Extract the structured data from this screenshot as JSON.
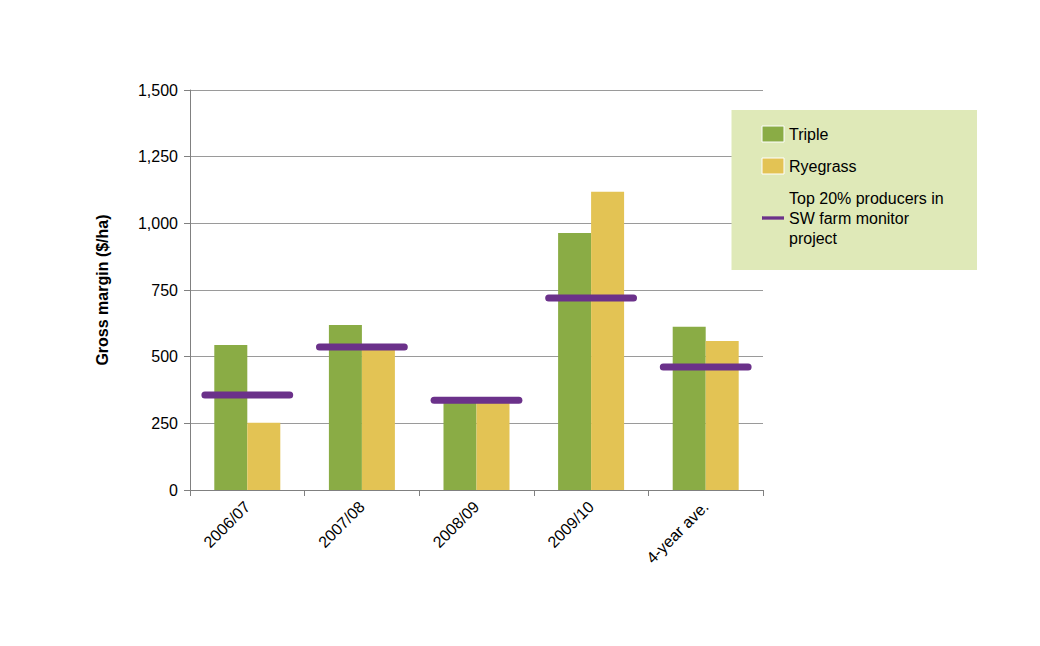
{
  "chart_data": {
    "type": "bar",
    "y_label": "Gross margin ($/ha)",
    "categories": [
      "2006/07",
      "2007/08",
      "2008/09",
      "2009/10",
      "4-year ave."
    ],
    "series": [
      {
        "name": "Triple",
        "type": "bar",
        "color": "#8aac45",
        "values": [
          544,
          619,
          330,
          964,
          612
        ]
      },
      {
        "name": "Ryegrass",
        "type": "bar",
        "color": "#e3c354",
        "values": [
          252,
          536,
          330,
          1118,
          559
        ]
      },
      {
        "name": "Top 20% producers in SW farm monitor project",
        "type": "hline",
        "color": "#6b318a",
        "values": [
          356,
          536,
          337,
          720,
          461
        ]
      }
    ],
    "ylim": [
      0,
      1500
    ],
    "yticks": [
      0,
      250,
      500,
      750,
      {
        "value": 1000,
        "label": "1,000"
      },
      {
        "value": 1250,
        "label": "1,250"
      },
      {
        "value": 1500,
        "label": "1,500"
      }
    ],
    "grid": true,
    "legend": "right"
  }
}
